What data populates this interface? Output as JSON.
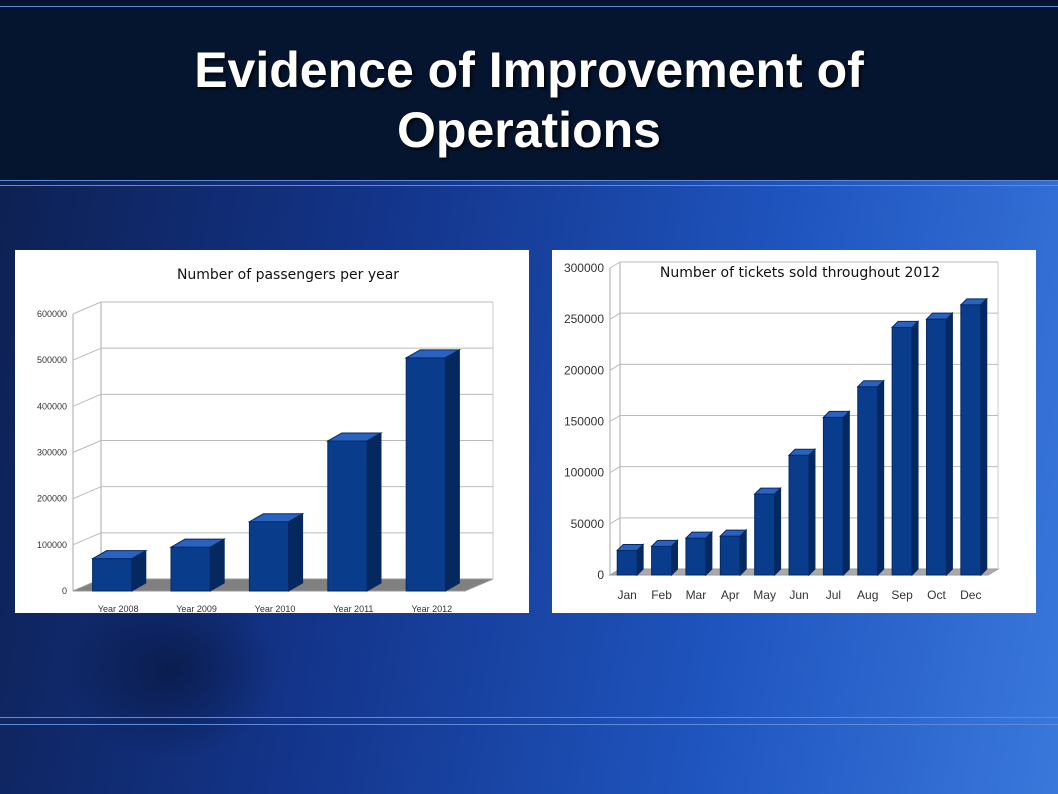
{
  "slide": {
    "title_line1": "Evidence of Improvement of",
    "title_line2": "Operations"
  },
  "chart_data": [
    {
      "type": "bar",
      "title": "Number of passengers per year",
      "categories": [
        "Year 2008",
        "Year 2009",
        "Year 2010",
        "Year 2011",
        "Year 2012"
      ],
      "values": [
        70000,
        95000,
        150000,
        325000,
        505000
      ],
      "ylim": [
        0,
        600000
      ],
      "yticks": [
        "0",
        "100000",
        "200000",
        "300000",
        "400000",
        "500000",
        "600000"
      ],
      "xlabel": "",
      "ylabel": "",
      "grid": true,
      "bar_color": "#0a3c8c"
    },
    {
      "type": "bar",
      "title": "Number of tickets sold throughout 2012",
      "categories": [
        "Jan",
        "Feb",
        "Mar",
        "Apr",
        "May",
        "Jun",
        "Jul",
        "Aug",
        "Sep",
        "Oct",
        "Dec"
      ],
      "values": [
        24000,
        28000,
        36000,
        38000,
        79000,
        117000,
        154000,
        184000,
        242000,
        250000,
        264000
      ],
      "ylim": [
        0,
        300000
      ],
      "yticks": [
        "0",
        "50000",
        "100000",
        "150000",
        "200000",
        "250000",
        "300000"
      ],
      "xlabel": "",
      "ylabel": "",
      "grid": true,
      "bar_color": "#0a3c8c"
    }
  ]
}
